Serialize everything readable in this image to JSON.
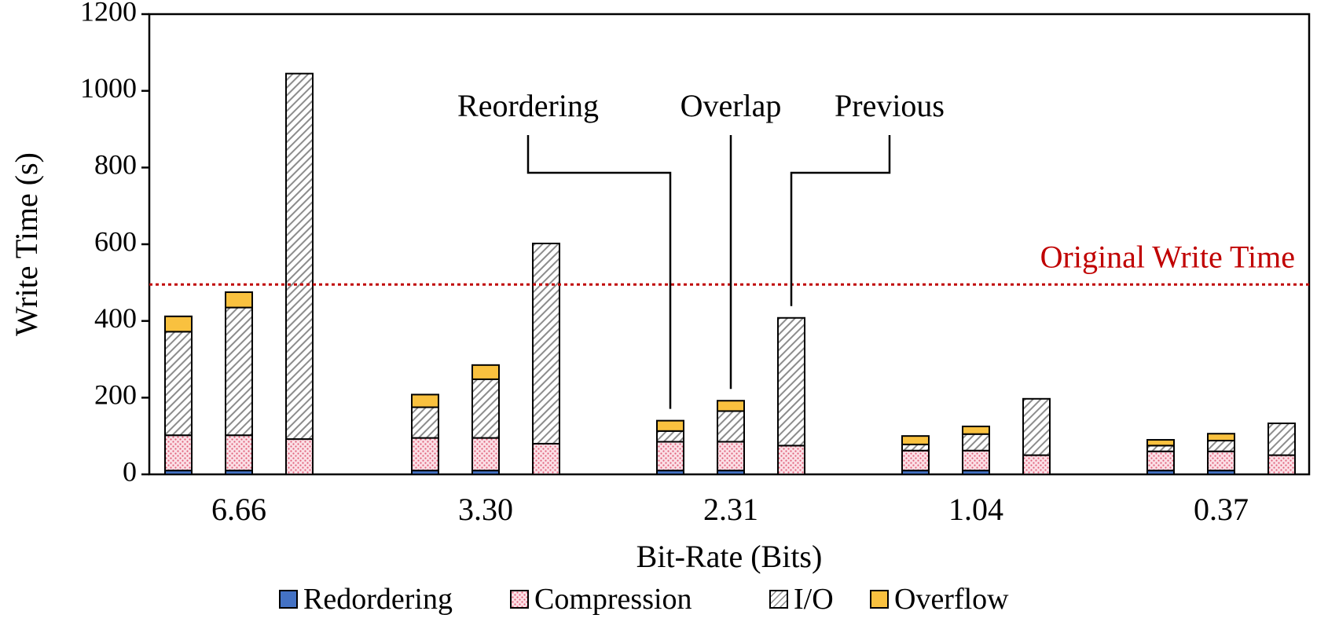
{
  "chart_data": {
    "type": "stacked-bar",
    "ylabel": "Write Time (s)",
    "xlabel": "Bit-Rate (Bits)",
    "ylim": [
      0,
      1200
    ],
    "yticks": [
      "0",
      "200",
      "400",
      "600",
      "800",
      "1000",
      "1200"
    ],
    "categories": [
      "6.66",
      "3.30",
      "2.31",
      "1.04",
      "0.37"
    ],
    "methods": [
      "Reordering",
      "Overlap",
      "Previous"
    ],
    "series": [
      {
        "name": "Redordering",
        "color": "#4472C4",
        "pattern": "solid",
        "values": [
          [
            10,
            10,
            0
          ],
          [
            10,
            10,
            0
          ],
          [
            10,
            10,
            0
          ],
          [
            10,
            10,
            0
          ],
          [
            10,
            10,
            0
          ]
        ]
      },
      {
        "name": "Compression",
        "color": "#F4B6C2",
        "pattern": "dots",
        "values": [
          [
            92,
            92,
            92
          ],
          [
            85,
            85,
            80
          ],
          [
            75,
            75,
            75
          ],
          [
            52,
            52,
            50
          ],
          [
            50,
            50,
            50
          ]
        ]
      },
      {
        "name": "I/O",
        "color": "#A6A6A6",
        "pattern": "hatch",
        "values": [
          [
            270,
            333,
            953
          ],
          [
            80,
            153,
            522
          ],
          [
            28,
            80,
            333
          ],
          [
            16,
            43,
            147
          ],
          [
            15,
            28,
            83
          ]
        ]
      },
      {
        "name": "Overflow",
        "color": "#F9C13F",
        "pattern": "solid",
        "values": [
          [
            40,
            40,
            0
          ],
          [
            33,
            37,
            0
          ],
          [
            27,
            27,
            0
          ],
          [
            22,
            20,
            0
          ],
          [
            15,
            18,
            0
          ]
        ]
      }
    ],
    "reference_line": {
      "label": "Original Write Time",
      "value": 495,
      "color": "#C00000"
    },
    "annotations": [
      {
        "label": "Reordering",
        "category": "2.31",
        "method": "Reordering"
      },
      {
        "label": "Overlap",
        "category": "2.31",
        "method": "Overlap"
      },
      {
        "label": "Previous",
        "category": "2.31",
        "method": "Previous"
      }
    ],
    "legend_position": "bottom"
  }
}
